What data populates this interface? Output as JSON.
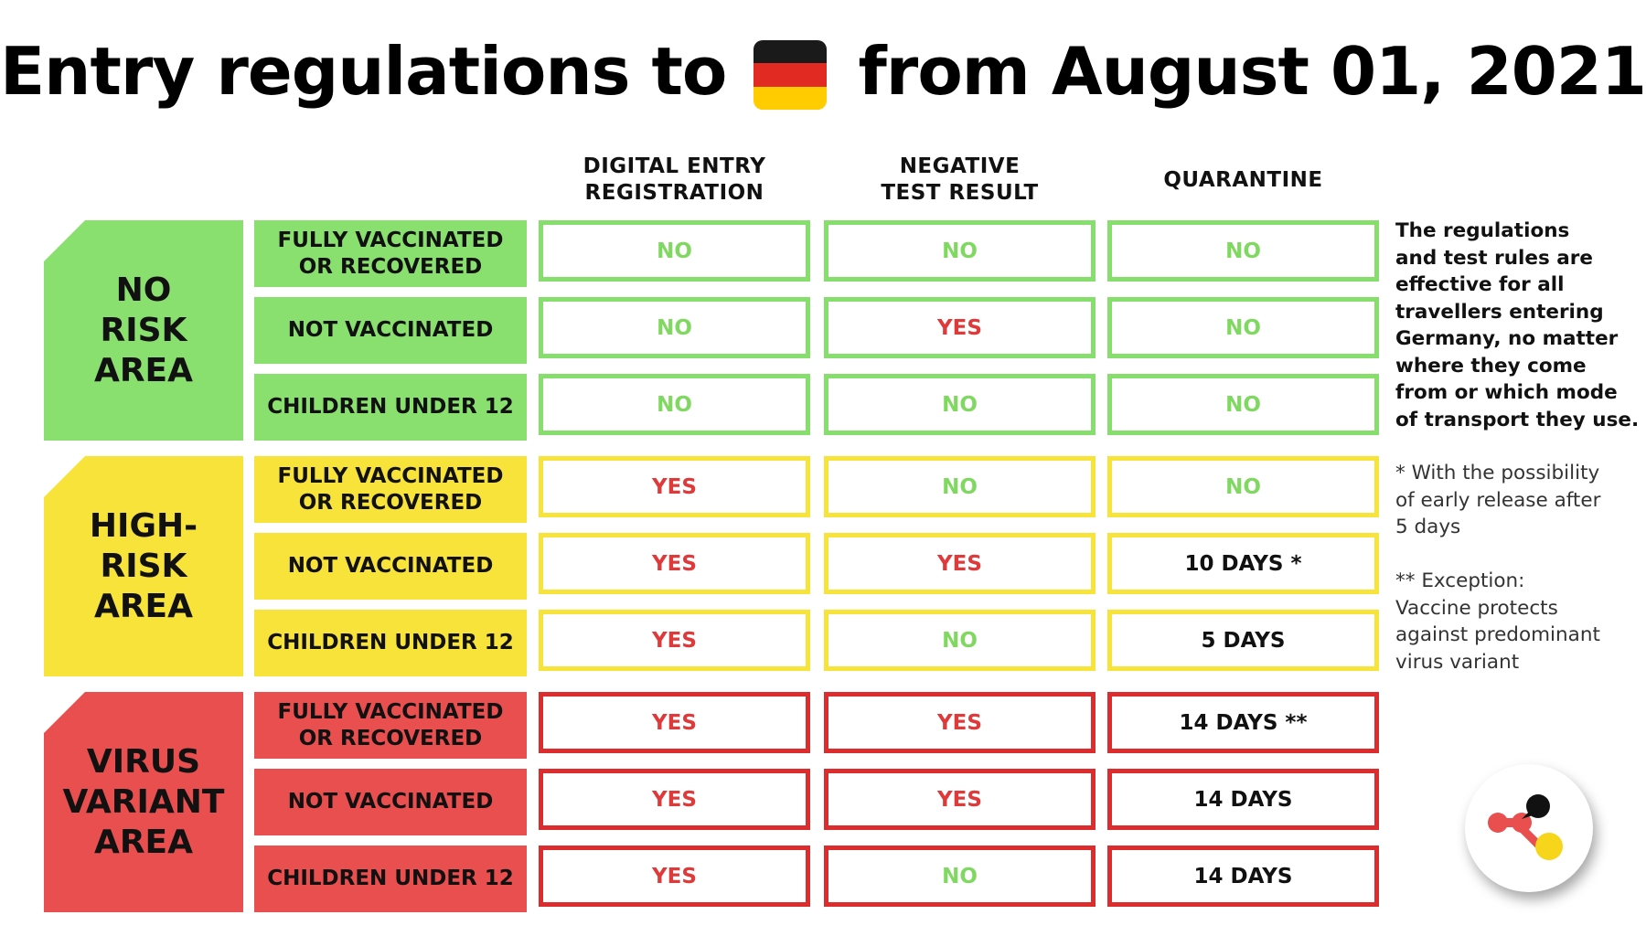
{
  "title": {
    "before_flag": "Entry regulations to",
    "after_flag": "from August 01, 2021",
    "flag_icon": "germany-flag-icon",
    "flag_colors": [
      "#1a1a1a",
      "#e12a22",
      "#ffcc00"
    ]
  },
  "columns": [
    {
      "line1": "DIGITAL ENTRY",
      "line2": "REGISTRATION"
    },
    {
      "line1": "NEGATIVE",
      "line2": "TEST RESULT"
    },
    {
      "line1": "QUARANTINE",
      "line2": ""
    }
  ],
  "areas": [
    {
      "name_lines": [
        "NO",
        "RISK",
        "AREA"
      ],
      "color": "#8ae06f",
      "rows": [
        {
          "label": [
            "FULLY VACCINATED",
            "OR RECOVERED"
          ],
          "cells": [
            "NO",
            "NO",
            "NO"
          ]
        },
        {
          "label": [
            "NOT VACCINATED"
          ],
          "cells": [
            "NO",
            "YES",
            "NO"
          ]
        },
        {
          "label": [
            "CHILDREN UNDER 12"
          ],
          "cells": [
            "NO",
            "NO",
            "NO"
          ]
        }
      ]
    },
    {
      "name_lines": [
        "HIGH-",
        "RISK",
        "AREA"
      ],
      "color": "#f7e33a",
      "rows": [
        {
          "label": [
            "FULLY VACCINATED",
            "OR RECOVERED"
          ],
          "cells": [
            "YES",
            "NO",
            "NO"
          ]
        },
        {
          "label": [
            "NOT VACCINATED"
          ],
          "cells": [
            "YES",
            "YES",
            "10 DAYS *"
          ]
        },
        {
          "label": [
            "CHILDREN UNDER 12"
          ],
          "cells": [
            "YES",
            "NO",
            "5 DAYS"
          ]
        }
      ]
    },
    {
      "name_lines": [
        "VIRUS",
        "VARIANT",
        "AREA"
      ],
      "color": "#e94f4f",
      "rows": [
        {
          "label": [
            "FULLY VACCINATED",
            "OR RECOVERED"
          ],
          "cells": [
            "YES",
            "YES",
            "14 DAYS **"
          ]
        },
        {
          "label": [
            "NOT VACCINATED"
          ],
          "cells": [
            "YES",
            "YES",
            "14 DAYS"
          ]
        },
        {
          "label": [
            "CHILDREN UNDER 12"
          ],
          "cells": [
            "YES",
            "NO",
            "14 DAYS"
          ]
        }
      ]
    }
  ],
  "sidebar": {
    "intro_lines": [
      "The regulations",
      "and test rules are",
      "effective for all",
      "travellers entering",
      "Germany, no matter",
      "where they come",
      "from or which mode",
      "of transport they use."
    ],
    "note1_lines": [
      "* With the possibility",
      "of early release after",
      "5 days"
    ],
    "note2_lines": [
      "** Exception:",
      "Vaccine protects",
      "against predominant",
      "virus variant"
    ]
  },
  "logo": {
    "icon": "brand-logo-icon"
  },
  "colors": {
    "green_text": "#7fd85f",
    "red_text": "#e0393a",
    "green_border": "#86df6c",
    "yellow_border": "#f7e33a",
    "red_border": "#dc2c2d"
  }
}
